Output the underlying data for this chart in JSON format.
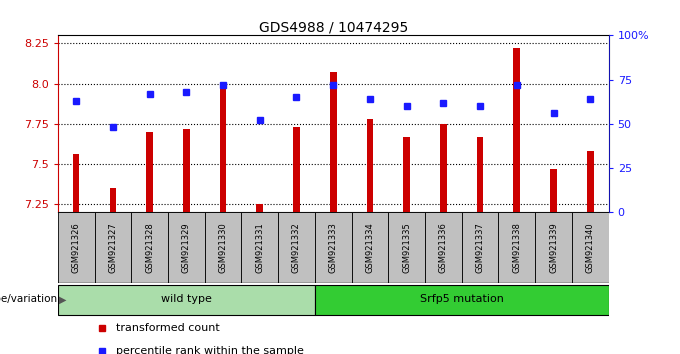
{
  "title": "GDS4988 / 10474295",
  "samples": [
    "GSM921326",
    "GSM921327",
    "GSM921328",
    "GSM921329",
    "GSM921330",
    "GSM921331",
    "GSM921332",
    "GSM921333",
    "GSM921334",
    "GSM921335",
    "GSM921336",
    "GSM921337",
    "GSM921338",
    "GSM921339",
    "GSM921340"
  ],
  "transformed_count": [
    7.56,
    7.35,
    7.7,
    7.72,
    7.97,
    7.25,
    7.73,
    8.07,
    7.78,
    7.67,
    7.75,
    7.67,
    8.22,
    7.47,
    7.58
  ],
  "percentile_rank": [
    63,
    48,
    67,
    68,
    72,
    52,
    65,
    72,
    64,
    60,
    62,
    60,
    72,
    56,
    64
  ],
  "ylim_left": [
    7.2,
    8.3
  ],
  "ylim_right": [
    0,
    100
  ],
  "yticks_left": [
    7.25,
    7.5,
    7.75,
    8.0,
    8.25
  ],
  "yticks_right": [
    0,
    25,
    50,
    75,
    100
  ],
  "ytick_labels_right": [
    "0",
    "25",
    "50",
    "75",
    "100%"
  ],
  "bar_color": "#cc0000",
  "square_color": "#1a1aff",
  "bar_width": 0.18,
  "groups": [
    {
      "label": "wild type",
      "start": 0,
      "end": 6,
      "color": "#aaddaa"
    },
    {
      "label": "Srfp5 mutation",
      "start": 7,
      "end": 14,
      "color": "#33cc33"
    }
  ],
  "group_row_label": "genotype/variation",
  "tick_bg_color": "#c0c0c0",
  "legend_items": [
    {
      "label": "transformed count",
      "color": "#cc0000"
    },
    {
      "label": "percentile rank within the sample",
      "color": "#1a1aff"
    }
  ]
}
